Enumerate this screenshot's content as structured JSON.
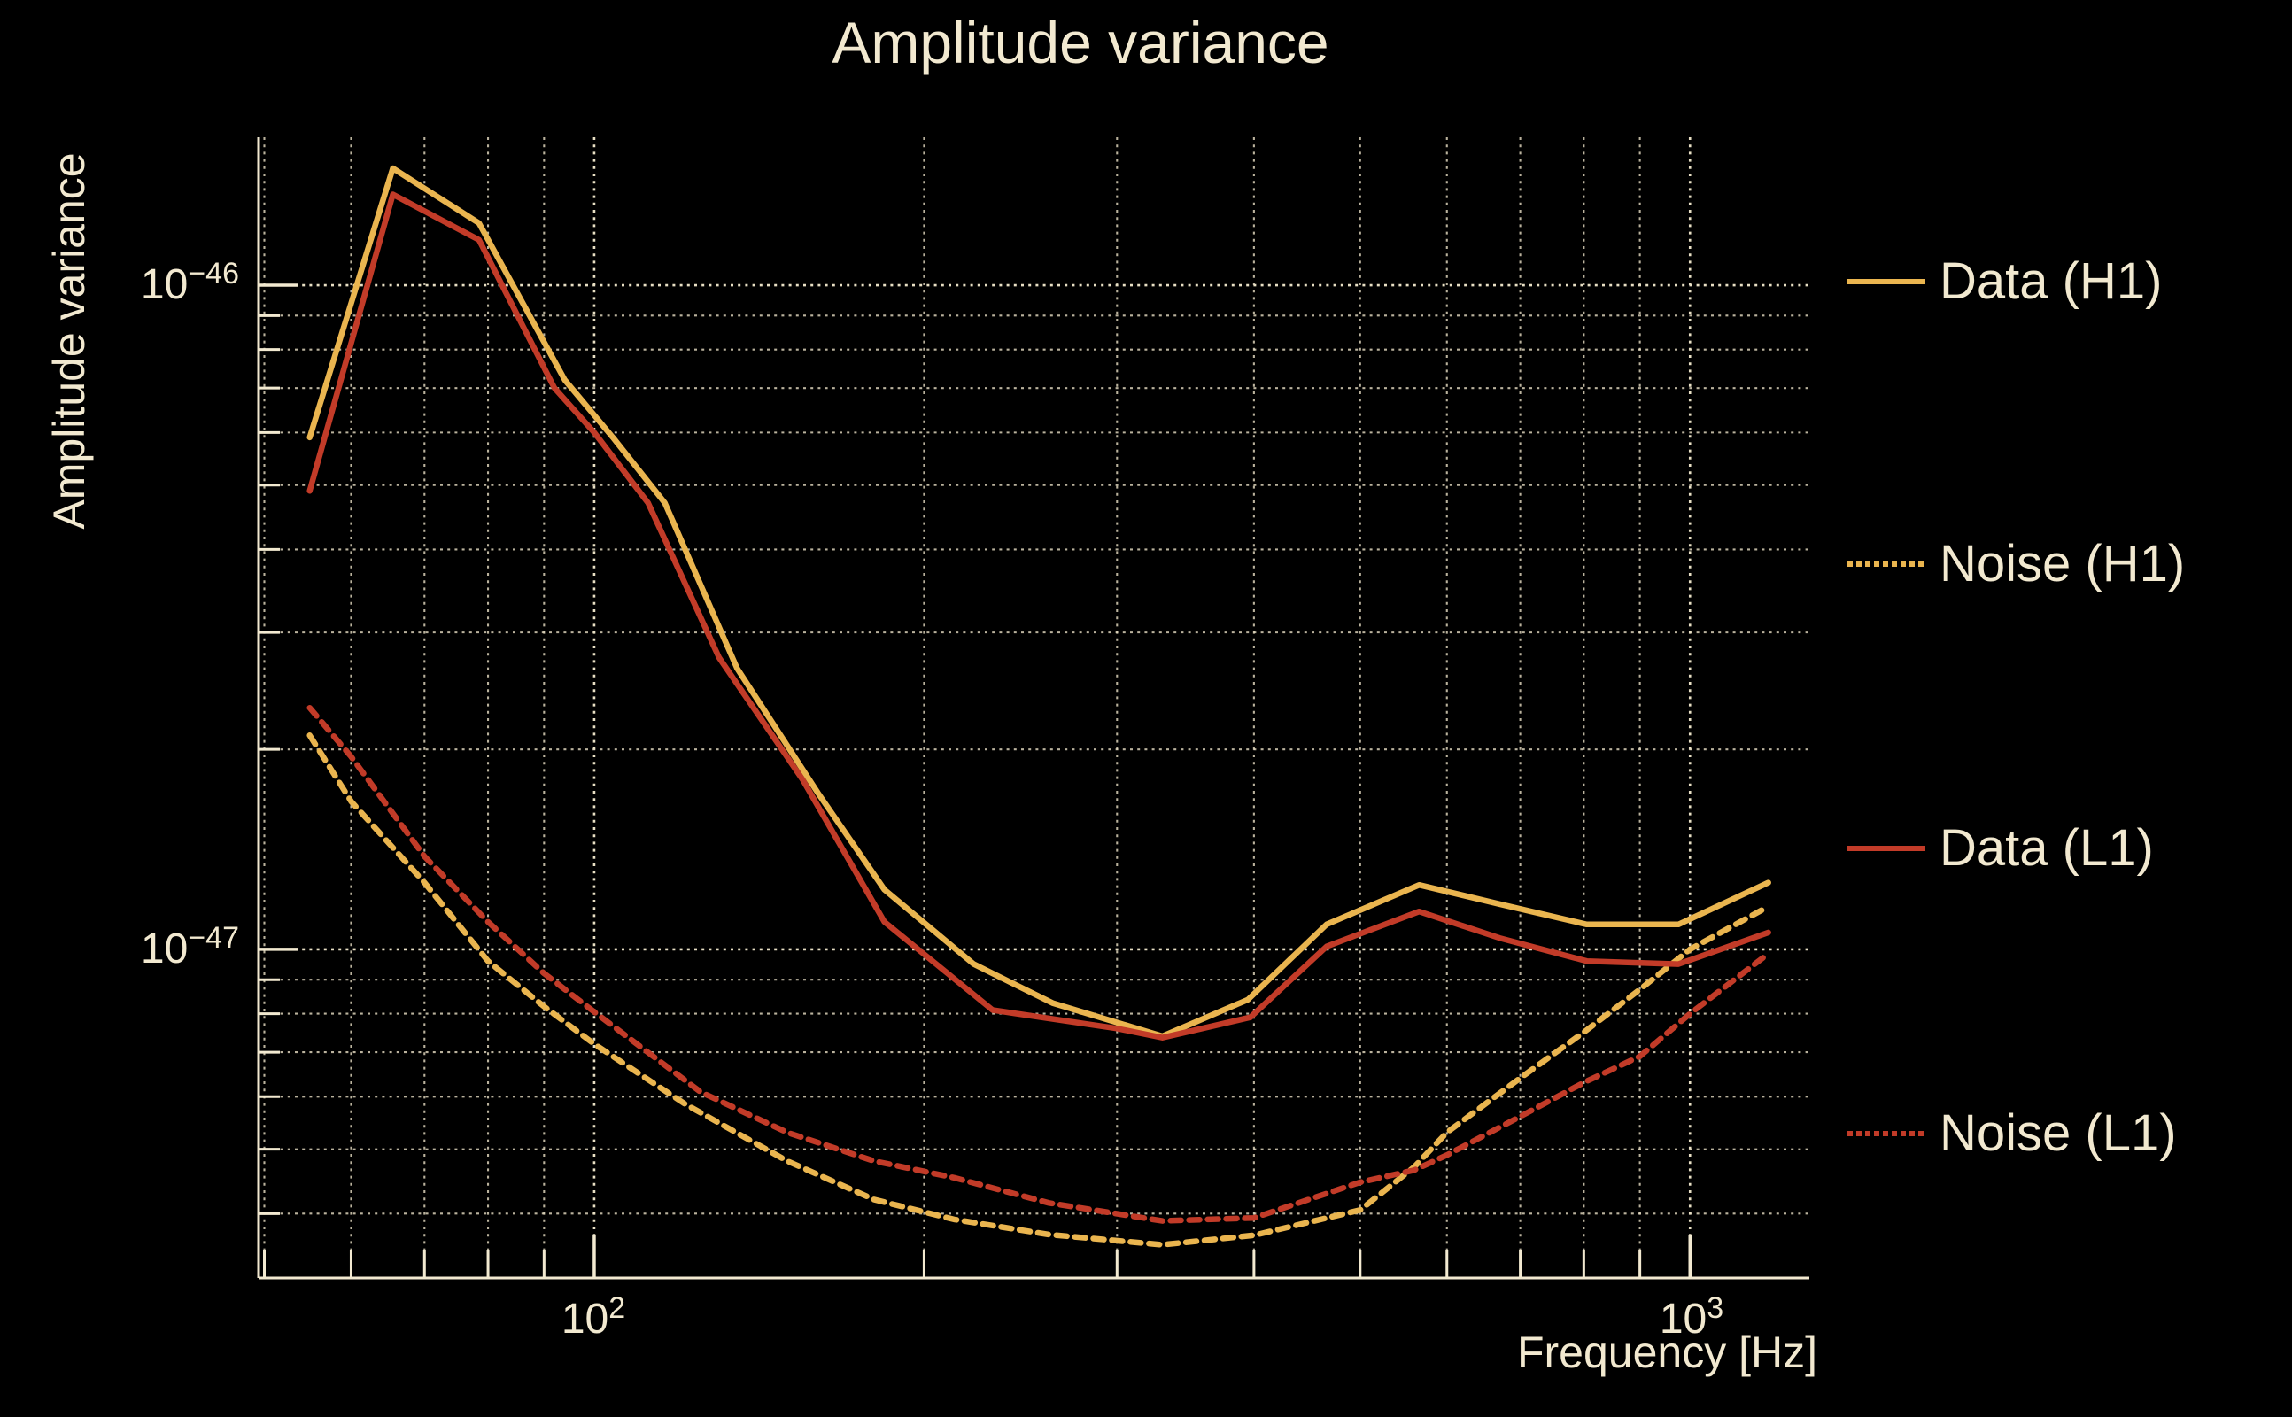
{
  "colors": {
    "background": "#000000",
    "foreground": "#f2e9d0",
    "grid": "#e8dfc4",
    "h1_accent": "#eab54f",
    "l1_accent": "#c23b28"
  },
  "chart_data": {
    "type": "line",
    "title": "Amplitude variance",
    "xlabel": "Frequency [Hz]",
    "ylabel": "Amplitude variance",
    "xscale": "log",
    "yscale": "log",
    "xlim": [
      49.4,
      1285
    ],
    "ylim": [
      3.2e-48,
      1.67e-46
    ],
    "grid": true,
    "legend_position": "right-outside",
    "x_ticks": [
      {
        "base": "10",
        "sup": "2",
        "value": 100
      },
      {
        "base": "10",
        "sup": "3",
        "value": 1000
      }
    ],
    "y_ticks": [
      {
        "base": "10",
        "sup": "−46",
        "value": 1e-46
      },
      {
        "base": "10",
        "sup": "−47",
        "value": 1e-47
      }
    ],
    "series": [
      {
        "name": "Data (H1)",
        "slug": "data-h1",
        "color": "#eab54f",
        "dash": "solid",
        "points": [
          [
            55,
            5.9e-47
          ],
          [
            65.5,
            1.5e-46
          ],
          [
            78.5,
            1.24e-46
          ],
          [
            94,
            7.2e-47
          ],
          [
            104,
            5.9e-47
          ],
          [
            116,
            4.7e-47
          ],
          [
            135,
            2.65e-47
          ],
          [
            160,
            1.72e-47
          ],
          [
            184,
            1.23e-47
          ],
          [
            222,
            9.5e-48
          ],
          [
            262,
            8.3e-48
          ],
          [
            330,
            7.4e-48
          ],
          [
            395,
            8.4e-48
          ],
          [
            466,
            1.09e-47
          ],
          [
            566,
            1.25e-47
          ],
          [
            670,
            1.17e-47
          ],
          [
            805,
            1.09e-47
          ],
          [
            976,
            1.09e-47
          ],
          [
            1179,
            1.26e-47
          ]
        ]
      },
      {
        "name": "Noise (H1)",
        "slug": "noise-h1",
        "color": "#eab54f",
        "dash": "dashed",
        "points": [
          [
            55,
            2.1e-47
          ],
          [
            60,
            1.67e-47
          ],
          [
            70,
            1.26e-47
          ],
          [
            80,
            9.6e-48
          ],
          [
            90,
            8.2e-48
          ],
          [
            100,
            7.2e-48
          ],
          [
            121,
            5.85e-48
          ],
          [
            150,
            4.8e-48
          ],
          [
            180,
            4.2e-48
          ],
          [
            213,
            3.92e-48
          ],
          [
            260,
            3.72e-48
          ],
          [
            330,
            3.59e-48
          ],
          [
            400,
            3.71e-48
          ],
          [
            500,
            4.05e-48
          ],
          [
            560,
            4.7e-48
          ],
          [
            600,
            5.3e-48
          ],
          [
            700,
            6.4e-48
          ],
          [
            800,
            7.5e-48
          ],
          [
            900,
            8.7e-48
          ],
          [
            1000,
            1e-47
          ],
          [
            1179,
            1.16e-47
          ]
        ]
      },
      {
        "name": "Data (L1)",
        "slug": "data-l1",
        "color": "#c23b28",
        "dash": "solid",
        "points": [
          [
            55,
            4.9e-47
          ],
          [
            65.5,
            1.37e-46
          ],
          [
            78.5,
            1.17e-46
          ],
          [
            92,
            7e-47
          ],
          [
            100,
            6e-47
          ],
          [
            112,
            4.7e-47
          ],
          [
            130,
            2.75e-47
          ],
          [
            155,
            1.8e-47
          ],
          [
            184,
            1.1e-47
          ],
          [
            231,
            8.1e-48
          ],
          [
            300,
            7.6e-48
          ],
          [
            330,
            7.36e-48
          ],
          [
            397,
            7.9e-48
          ],
          [
            466,
            1.01e-47
          ],
          [
            566,
            1.14e-47
          ],
          [
            670,
            1.04e-47
          ],
          [
            805,
            9.6e-48
          ],
          [
            976,
            9.5e-48
          ],
          [
            1179,
            1.06e-47
          ]
        ]
      },
      {
        "name": "Noise (L1)",
        "slug": "noise-l1",
        "color": "#c23b28",
        "dash": "dashed",
        "points": [
          [
            55,
            2.31e-47
          ],
          [
            60,
            1.95e-47
          ],
          [
            70,
            1.38e-47
          ],
          [
            80,
            1.1e-47
          ],
          [
            90,
            9.2e-48
          ],
          [
            100,
            8.05e-48
          ],
          [
            125,
            6.1e-48
          ],
          [
            150,
            5.3e-48
          ],
          [
            180,
            4.8e-48
          ],
          [
            213,
            4.53e-48
          ],
          [
            260,
            4.15e-48
          ],
          [
            330,
            3.9e-48
          ],
          [
            400,
            3.94e-48
          ],
          [
            500,
            4.46e-48
          ],
          [
            560,
            4.65e-48
          ],
          [
            600,
            4.9e-48
          ],
          [
            700,
            5.6e-48
          ],
          [
            800,
            6.3e-48
          ],
          [
            900,
            6.9e-48
          ],
          [
            1000,
            8e-48
          ],
          [
            1179,
            9.85e-48
          ]
        ]
      }
    ]
  }
}
